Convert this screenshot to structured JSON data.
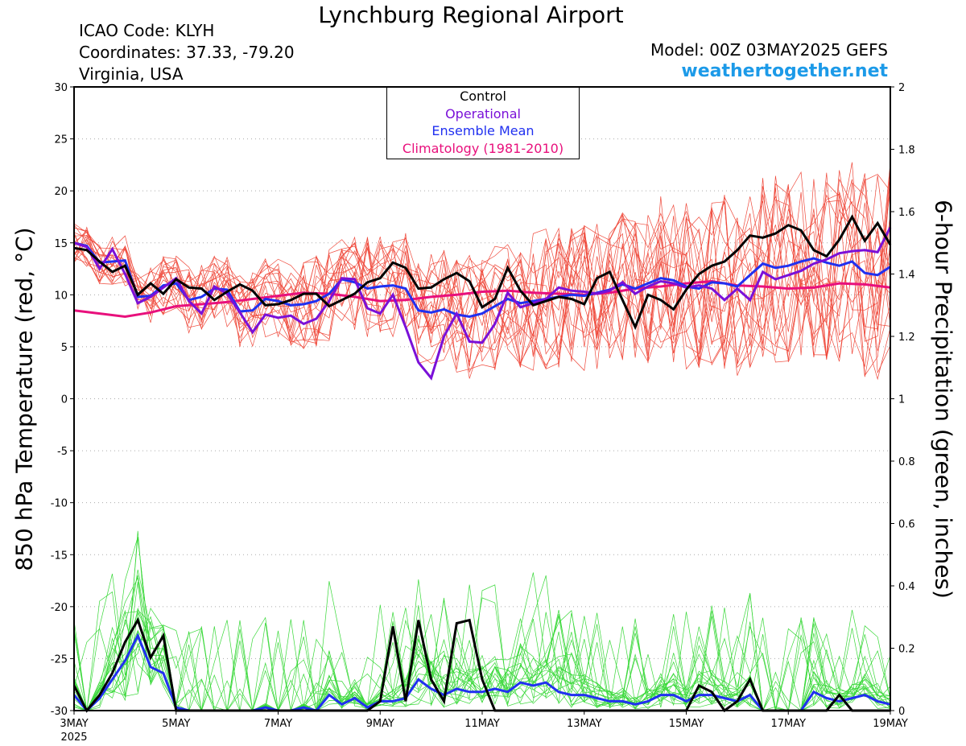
{
  "header": {
    "title": "Lynchburg Regional Airport",
    "icao": "ICAO Code: KLYH",
    "coords": "Coordinates: 37.33, -79.20",
    "location": "Virginia, USA",
    "model": "Model: 00Z 03MAY2025 GEFS",
    "site": "weathertogether.net"
  },
  "colors": {
    "members_temp": "#ef4a3c",
    "members_precip": "#38d838",
    "control": "#000000",
    "operational": "#7a10d8",
    "mean": "#2030f0",
    "climatology": "#e8107c",
    "site": "#1c9ae8"
  },
  "chart_data": {
    "type": "line",
    "xlabel": "",
    "ylabel": "850 hPa Temperature (red, °C)",
    "y2label": "6-hour Precipitation (green, inches)",
    "ylim": [
      -30,
      30
    ],
    "y2lim": [
      0,
      2
    ],
    "yticks": [
      "30",
      "25",
      "20",
      "15",
      "10",
      "5",
      "0",
      "-5",
      "-10",
      "-15",
      "-20",
      "-25",
      "-30"
    ],
    "y2ticks": [
      "2",
      "1.8",
      "1.6",
      "1.4",
      "1.2",
      "1",
      "0.8",
      "0.6",
      "0.4",
      "0.2",
      "0"
    ],
    "xticks": [
      "3MAY",
      "5MAY",
      "7MAY",
      "9MAY",
      "11MAY",
      "13MAY",
      "15MAY",
      "17MAY",
      "19MAY"
    ],
    "xyear": "2025",
    "x_days": [
      0,
      2,
      4,
      6,
      8,
      10,
      12,
      14,
      16
    ],
    "grid": true,
    "legend_position": "top-center",
    "legend": [
      "Control",
      "Operational",
      "Ensemble Mean",
      "Climatology (1981-2010)"
    ],
    "temp_members_seed": 7,
    "temp": {
      "control": [
        14.5,
        14.3,
        13.2,
        12.2,
        12.8,
        10.0,
        11.1,
        10.1,
        11.5,
        10.7,
        10.6,
        9.5,
        10.3,
        11.0,
        10.4,
        9.0,
        9.1,
        9.5,
        10.1,
        10.1,
        8.9,
        9.5,
        10.1,
        11.2,
        11.6,
        13.1,
        12.6,
        10.6,
        10.7,
        11.5,
        12.1,
        11.3,
        8.8,
        9.6,
        12.6,
        10.4,
        9.0,
        9.4,
        9.8,
        9.6,
        9.1,
        11.6,
        12.2,
        9.5,
        6.9,
        10.0,
        9.5,
        8.6,
        10.5,
        12.0,
        12.8,
        13.2,
        14.3,
        15.7,
        15.5,
        15.9,
        16.7,
        16.2,
        14.3,
        13.7,
        15.3,
        17.5,
        15.2,
        16.9,
        14.8
      ],
      "operational": [
        15.0,
        14.6,
        12.5,
        14.4,
        12.0,
        9.2,
        9.8,
        10.7,
        11.6,
        9.4,
        8.2,
        10.8,
        10.1,
        8.3,
        6.4,
        8.1,
        7.8,
        8.0,
        7.2,
        7.7,
        9.4,
        11.6,
        11.5,
        8.7,
        8.2,
        10.0,
        6.9,
        3.5,
        2.0,
        6.0,
        8.2,
        5.5,
        5.4,
        7.2,
        10.2,
        8.8,
        9.2,
        9.6,
        10.7,
        10.4,
        10.3,
        10.1,
        10.4,
        11.2,
        10.1,
        10.8,
        11.3,
        11.1,
        10.7,
        10.9,
        10.6,
        9.5,
        10.6,
        9.5,
        12.2,
        11.5,
        11.9,
        12.3,
        13.0,
        13.4,
        14.0,
        14.2,
        14.3,
        14.1,
        16.5
      ],
      "mean": [
        15.0,
        14.7,
        13.1,
        13.2,
        13.3,
        9.8,
        9.9,
        10.9,
        11.1,
        9.5,
        9.8,
        10.6,
        10.5,
        8.4,
        8.5,
        9.6,
        9.4,
        9.0,
        9.1,
        9.4,
        10.1,
        11.5,
        11.2,
        10.6,
        10.8,
        10.9,
        10.6,
        8.5,
        8.3,
        8.6,
        8.1,
        7.9,
        8.2,
        8.9,
        9.6,
        9.2,
        9.4,
        9.6,
        9.8,
        10.0,
        9.9,
        10.2,
        10.5,
        11.0,
        10.6,
        11.1,
        11.6,
        11.4,
        10.8,
        10.6,
        11.2,
        11.1,
        10.8,
        11.9,
        13.0,
        12.6,
        12.8,
        13.2,
        13.5,
        13.1,
        12.8,
        13.2,
        12.1,
        11.9,
        12.7
      ],
      "climatology_x": [
        0,
        0.5,
        1.0,
        1.5,
        2.0,
        2.5,
        3.0,
        3.5,
        4.0,
        4.5,
        5.0,
        5.5,
        6.0,
        6.5,
        7.0,
        7.5,
        8.0,
        8.5,
        9.0,
        9.5,
        10.0,
        10.5,
        11.0,
        11.5,
        12.0,
        12.5,
        13.0,
        13.5,
        14.0,
        14.5,
        15.0,
        15.5,
        16.0
      ],
      "climatology": [
        8.5,
        8.2,
        7.9,
        8.3,
        8.9,
        9.1,
        9.3,
        9.6,
        9.9,
        10.2,
        10.1,
        9.8,
        9.4,
        9.5,
        9.8,
        10.0,
        10.3,
        10.4,
        10.2,
        10.1,
        10.0,
        10.2,
        10.6,
        10.8,
        11.1,
        11.3,
        10.9,
        10.8,
        10.6,
        10.7,
        11.1,
        11.0,
        10.7
      ]
    },
    "precip": {
      "control": [
        0.08,
        0.0,
        0.05,
        0.12,
        0.22,
        0.29,
        0.17,
        0.24,
        0.0,
        0.0,
        0.0,
        0.0,
        0.0,
        0.0,
        0.0,
        0.0,
        0.0,
        0.0,
        0.0,
        0.0,
        0.0,
        0.0,
        0.0,
        0.0,
        0.03,
        0.27,
        0.03,
        0.29,
        0.1,
        0.03,
        0.28,
        0.29,
        0.1,
        0.0,
        0.0,
        0.0,
        0.0,
        0.0,
        0.0,
        0.0,
        0.0,
        0.0,
        0.0,
        0.0,
        0.0,
        0.0,
        0.0,
        0.0,
        0.0,
        0.08,
        0.06,
        0.0,
        0.03,
        0.1,
        0.0,
        0.0,
        0.0,
        0.0,
        0.0,
        0.0,
        0.05,
        0.0,
        0.0,
        0.0,
        0.0
      ],
      "operational": [],
      "mean": [
        0.05,
        0.0,
        0.04,
        0.1,
        0.16,
        0.24,
        0.14,
        0.12,
        0.01,
        0.0,
        0.0,
        0.0,
        0.0,
        0.0,
        0.0,
        0.01,
        0.0,
        0.0,
        0.01,
        0.0,
        0.05,
        0.02,
        0.04,
        0.01,
        0.03,
        0.03,
        0.04,
        0.1,
        0.07,
        0.05,
        0.07,
        0.06,
        0.06,
        0.07,
        0.06,
        0.09,
        0.08,
        0.09,
        0.06,
        0.05,
        0.05,
        0.04,
        0.03,
        0.03,
        0.02,
        0.03,
        0.05,
        0.05,
        0.03,
        0.05,
        0.05,
        0.04,
        0.03,
        0.05,
        0.0,
        0.0,
        0.0,
        0.0,
        0.06,
        0.04,
        0.03,
        0.04,
        0.05,
        0.03,
        0.02
      ]
    }
  }
}
